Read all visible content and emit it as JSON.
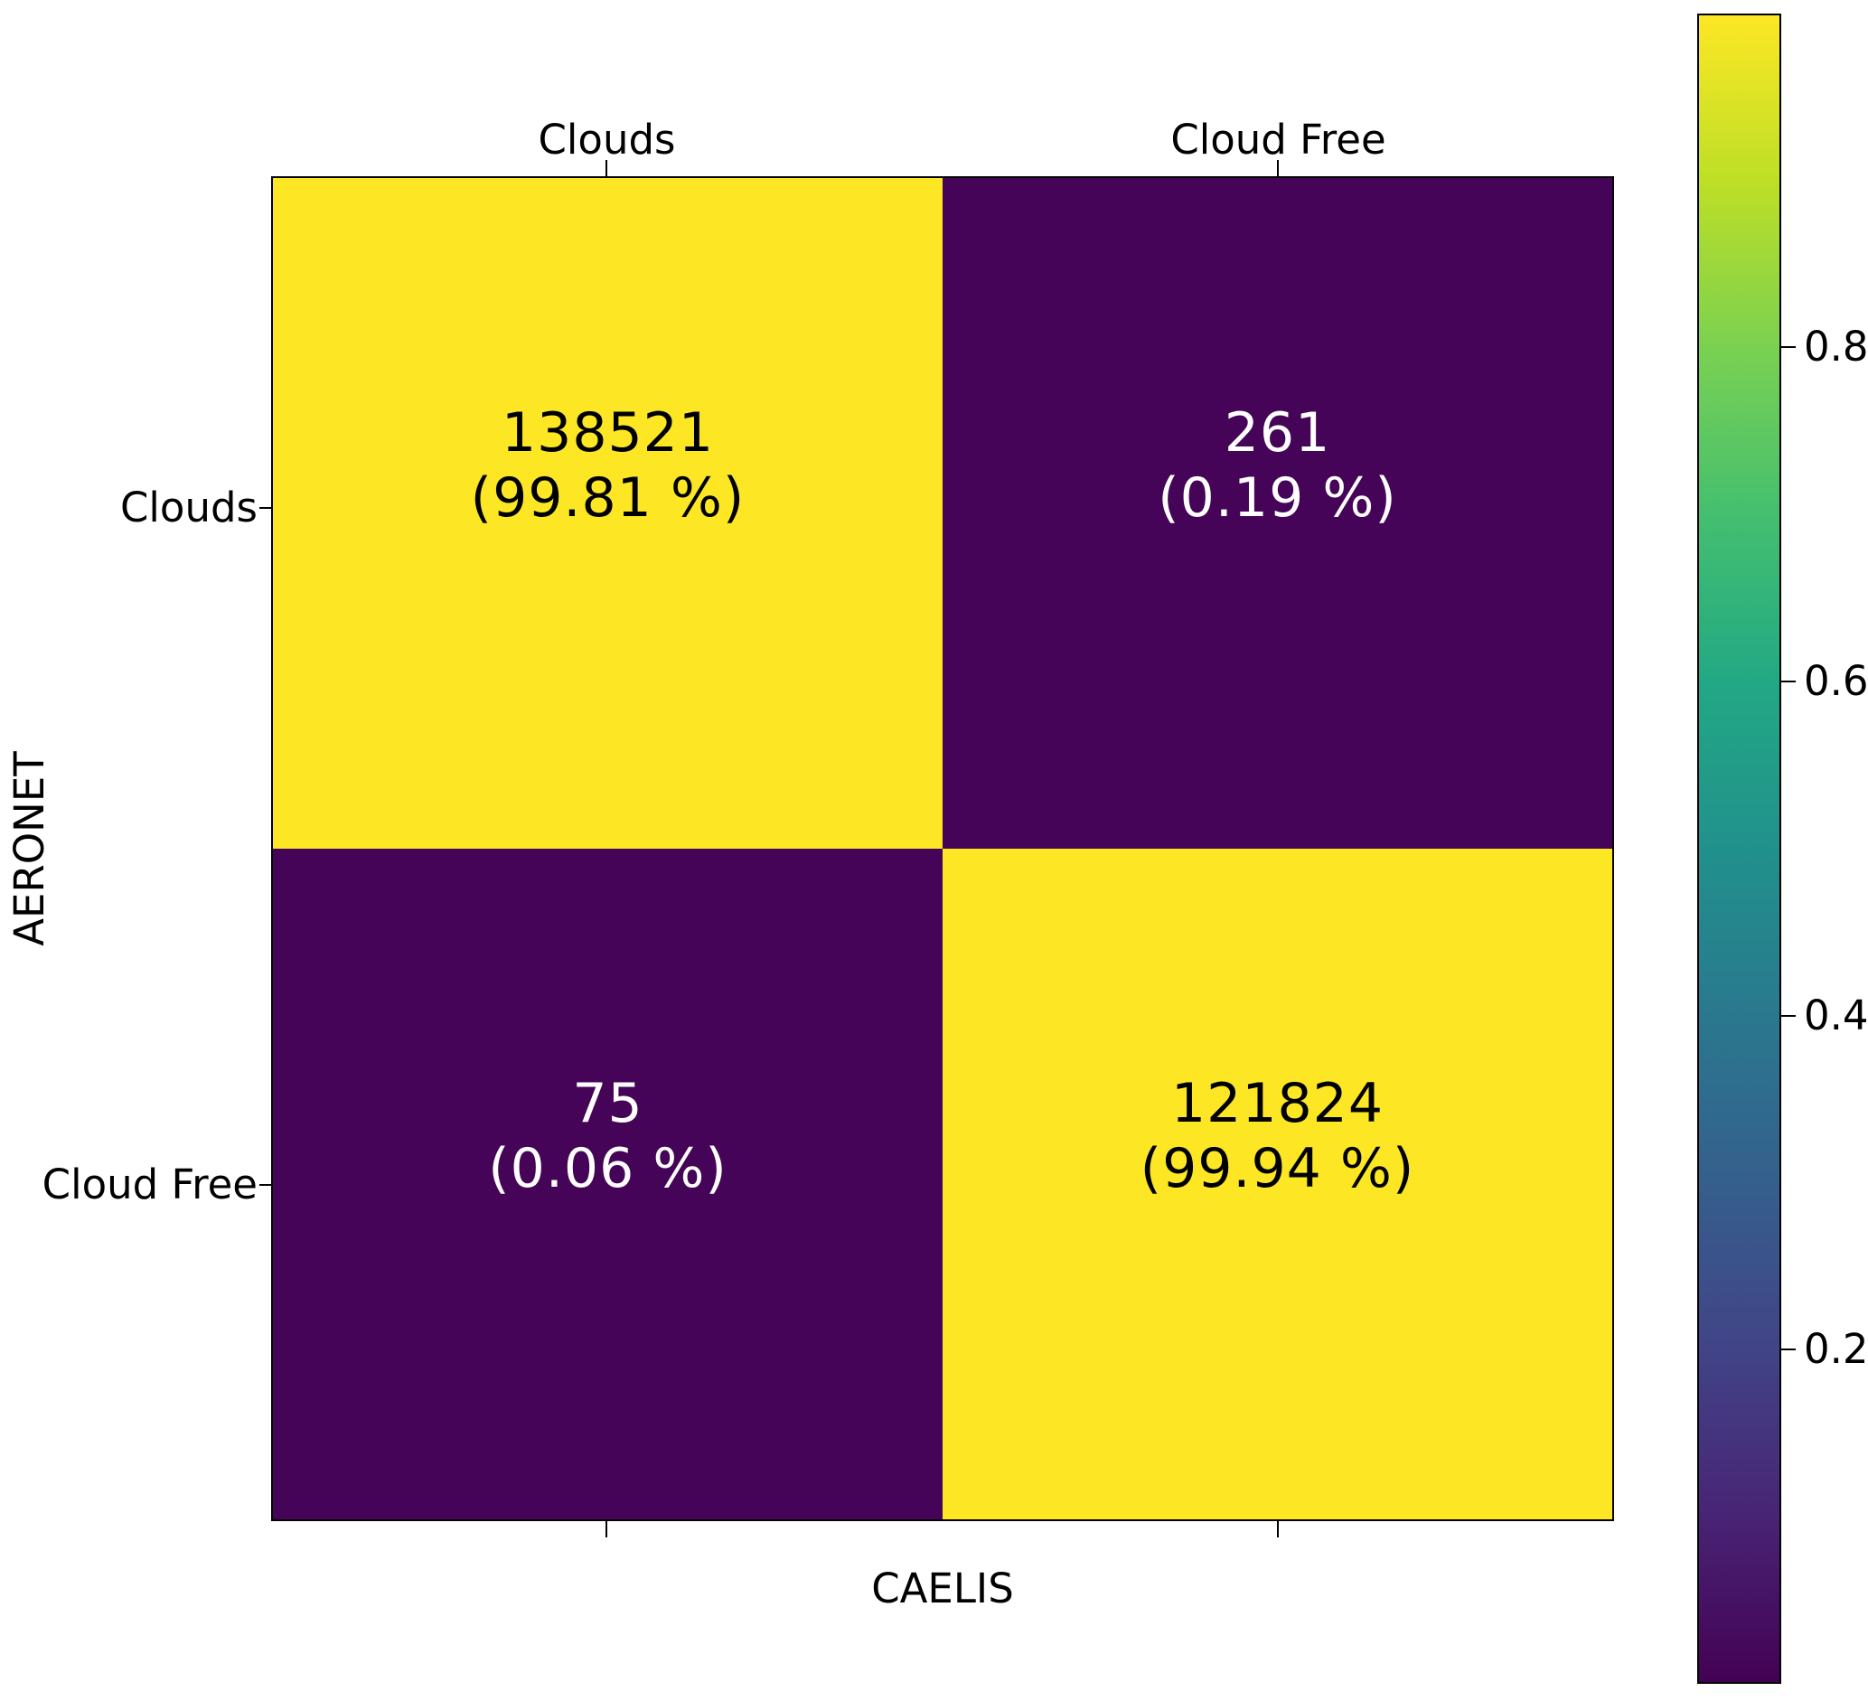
{
  "chart_data": {
    "type": "heatmap",
    "title": "",
    "xlabel": "CAELIS",
    "ylabel": "AERONET",
    "x_categories": [
      "Clouds",
      "Cloud Free"
    ],
    "y_categories": [
      "Clouds",
      "Cloud Free"
    ],
    "cells": [
      {
        "row": "Clouds",
        "col": "Clouds",
        "count": "138521",
        "percent": "(99.81 %)",
        "value": 0.9981
      },
      {
        "row": "Clouds",
        "col": "Cloud Free",
        "count": "261",
        "percent": "(0.19 %)",
        "value": 0.0019
      },
      {
        "row": "Cloud Free",
        "col": "Clouds",
        "count": "75",
        "percent": "(0.06 %)",
        "value": 0.0006
      },
      {
        "row": "Cloud Free",
        "col": "Cloud Free",
        "count": "121824",
        "percent": "(99.94 %)",
        "value": 0.9994
      }
    ],
    "colormap": "viridis",
    "colorbar": {
      "ticks": [
        "0.8",
        "0.6",
        "0.4",
        "0.2"
      ],
      "tick_values": [
        0.8,
        0.6,
        0.4,
        0.2
      ],
      "vmin": 0.0006,
      "vmax": 0.9994,
      "position": "right"
    },
    "legend": "none",
    "grid": false
  },
  "colors": {
    "cell_high": "#fde725",
    "cell_low": "#450457",
    "text_on_high": "#000000",
    "text_on_low": "#ffffff",
    "axes": "#000000",
    "background": "#ffffff"
  }
}
